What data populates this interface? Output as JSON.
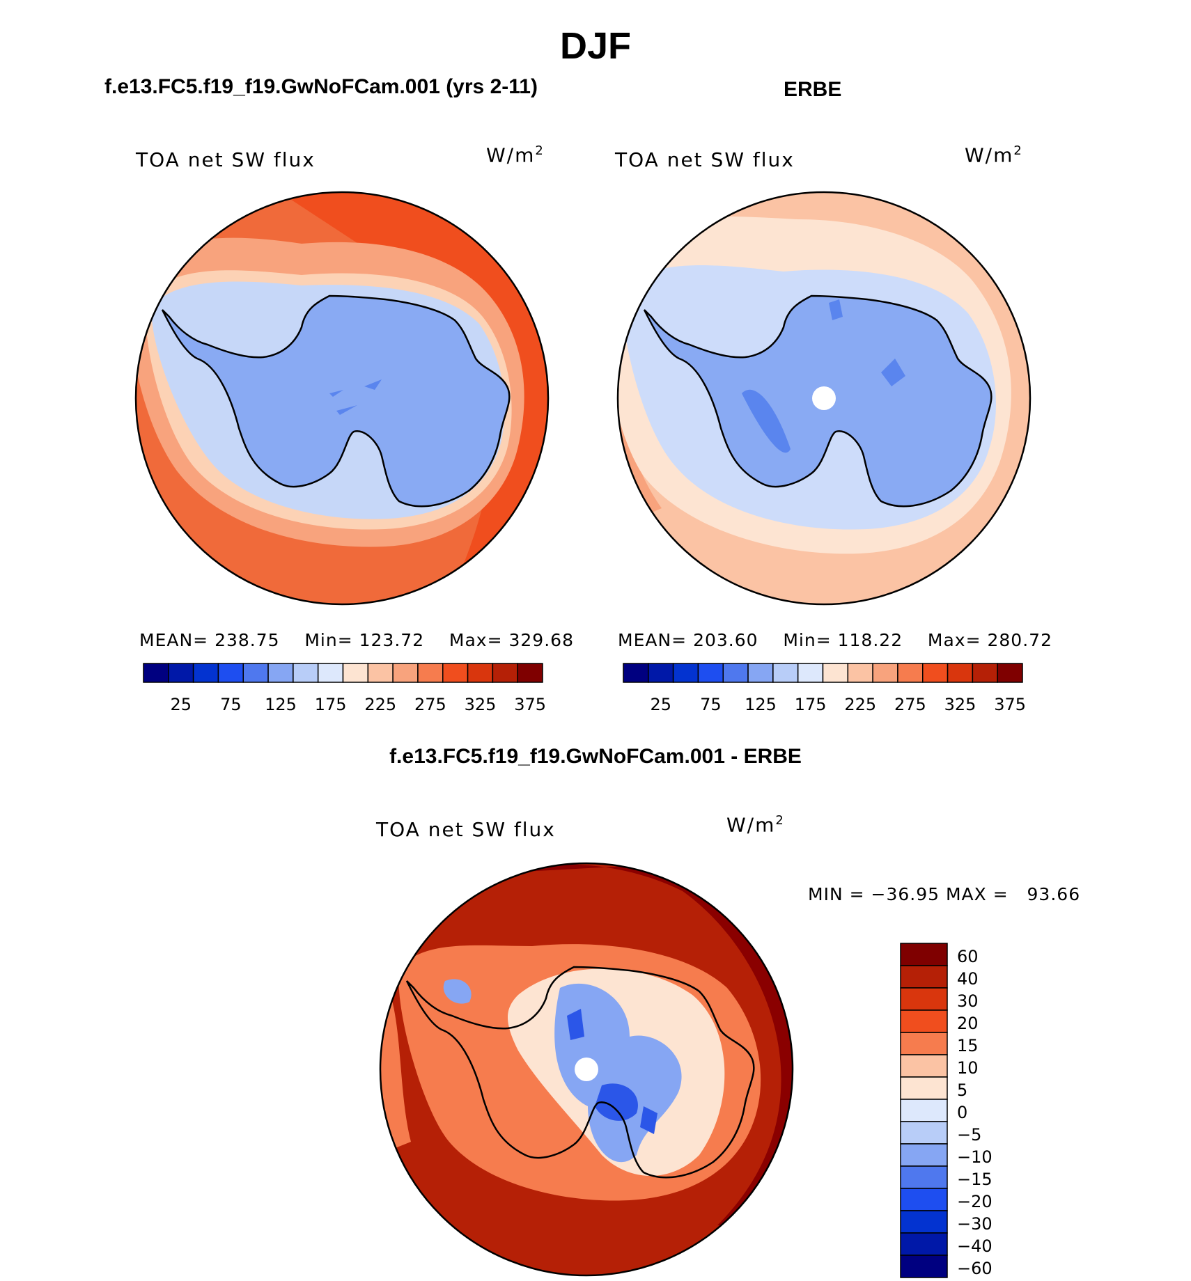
{
  "title": "DJF",
  "panels": [
    {
      "heading": "f.e13.FC5.f19_f19.GwNoFCam.001 (yrs 2-11)",
      "variable": "TOA net SW flux",
      "units_base": "W/m",
      "units_exp": "2",
      "stats": {
        "mean_label": "MEAN=",
        "mean": "238.75",
        "min_label": "Min=",
        "min": "123.72",
        "max_label": "Max=",
        "max": "329.68"
      },
      "colors": {
        "ocean": "#f06a3a",
        "ocean_dark": "#f04e1e",
        "ring": "#f8a37d",
        "ring_light": "#fcd2b5",
        "sea_ice": "#c6d7f8",
        "land": "#89aaf3",
        "land_dark": "#5a85ee"
      }
    },
    {
      "heading": "ERBE",
      "variable": "TOA net SW flux",
      "units_base": "W/m",
      "units_exp": "2",
      "stats": {
        "mean_label": "MEAN=",
        "mean": "203.60",
        "min_label": "Min=",
        "min": "118.22",
        "max_label": "Max=",
        "max": "280.72"
      },
      "colors": {
        "ocean": "#fbc3a4",
        "ocean_dark": "#f8a37d",
        "ring": "#fde4d2",
        "ring_light": "#e3ecfb",
        "sea_ice": "#cddcfa",
        "land": "#89aaf3",
        "land_dark": "#5a85ee"
      }
    }
  ],
  "colorbar_top": {
    "colors": [
      "#000080",
      "#0018a8",
      "#0333d0",
      "#1e4ef0",
      "#4f78ee",
      "#86a6f3",
      "#b8cdf8",
      "#dde8fc",
      "#fde4d2",
      "#fbc3a4",
      "#f8a37d",
      "#f67c4e",
      "#f04e1e",
      "#d9360d",
      "#b52006",
      "#7f0000"
    ],
    "tick_labels": [
      "25",
      "75",
      "125",
      "175",
      "225",
      "275",
      "325",
      "375"
    ]
  },
  "diff_panel": {
    "heading": "f.e13.FC5.f19_f19.GwNoFCam.001 - ERBE",
    "variable": "TOA net SW flux",
    "units_base": "W/m",
    "units_exp": "2",
    "minmax": {
      "min_label": "MIN =",
      "min": "−36.95",
      "max_label": "MAX =",
      "max": "93.66"
    },
    "colors": {
      "ocean": "#b52006",
      "ocean_dark": "#8a0000",
      "ring": "#f67c4e",
      "white_zone": "#fde4d2",
      "blue": "#86a6f3",
      "blue_dark": "#2b56e8"
    },
    "colorbar": {
      "colors": [
        "#7f0000",
        "#b52006",
        "#d9360d",
        "#f04e1e",
        "#f67c4e",
        "#fbc3a4",
        "#fde4d2",
        "#dde8fc",
        "#b8cdf8",
        "#86a6f3",
        "#4f78ee",
        "#1e4ef0",
        "#0333d0",
        "#0018a8",
        "#000080"
      ],
      "tick_labels": [
        "60",
        "40",
        "30",
        "20",
        "15",
        "10",
        "5",
        "0",
        "−5",
        "−10",
        "−15",
        "−20",
        "−30",
        "−40",
        "−60"
      ]
    }
  }
}
